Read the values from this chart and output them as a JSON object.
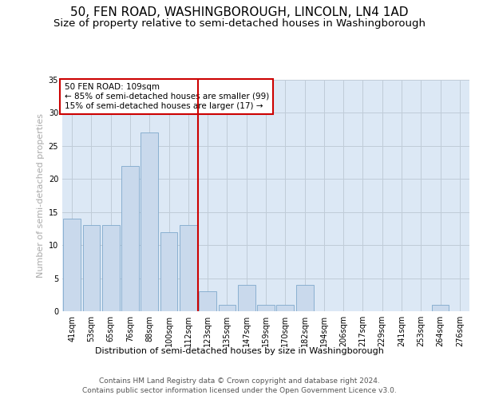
{
  "title1": "50, FEN ROAD, WASHINGBOROUGH, LINCOLN, LN4 1AD",
  "title2": "Size of property relative to semi-detached houses in Washingborough",
  "xlabel": "Distribution of semi-detached houses by size in Washingborough",
  "ylabel": "Number of semi-detached properties",
  "categories": [
    "41sqm",
    "53sqm",
    "65sqm",
    "76sqm",
    "88sqm",
    "100sqm",
    "112sqm",
    "123sqm",
    "135sqm",
    "147sqm",
    "159sqm",
    "170sqm",
    "182sqm",
    "194sqm",
    "206sqm",
    "217sqm",
    "229sqm",
    "241sqm",
    "253sqm",
    "264sqm",
    "276sqm"
  ],
  "values": [
    14,
    13,
    13,
    22,
    27,
    12,
    13,
    3,
    1,
    4,
    1,
    1,
    4,
    0,
    0,
    0,
    0,
    0,
    0,
    1,
    0
  ],
  "bar_color": "#c9d9ec",
  "bar_edge_color": "#7fa8cc",
  "subject_bar_index": 6,
  "vline_color": "#cc0000",
  "annotation_text": "50 FEN ROAD: 109sqm\n← 85% of semi-detached houses are smaller (99)\n15% of semi-detached houses are larger (17) →",
  "ylim": [
    0,
    35
  ],
  "yticks": [
    0,
    5,
    10,
    15,
    20,
    25,
    30,
    35
  ],
  "footnote1": "Contains HM Land Registry data © Crown copyright and database right 2024.",
  "footnote2": "Contains public sector information licensed under the Open Government Licence v3.0.",
  "background_color": "#ffffff",
  "plot_bg_color": "#dce8f5",
  "grid_color": "#c0ccd8",
  "title1_fontsize": 11,
  "title2_fontsize": 9.5,
  "axis_label_fontsize": 8,
  "tick_fontsize": 7,
  "annotation_fontsize": 7.5,
  "footnote_fontsize": 6.5,
  "ylabel_color": "#aaaaaa"
}
